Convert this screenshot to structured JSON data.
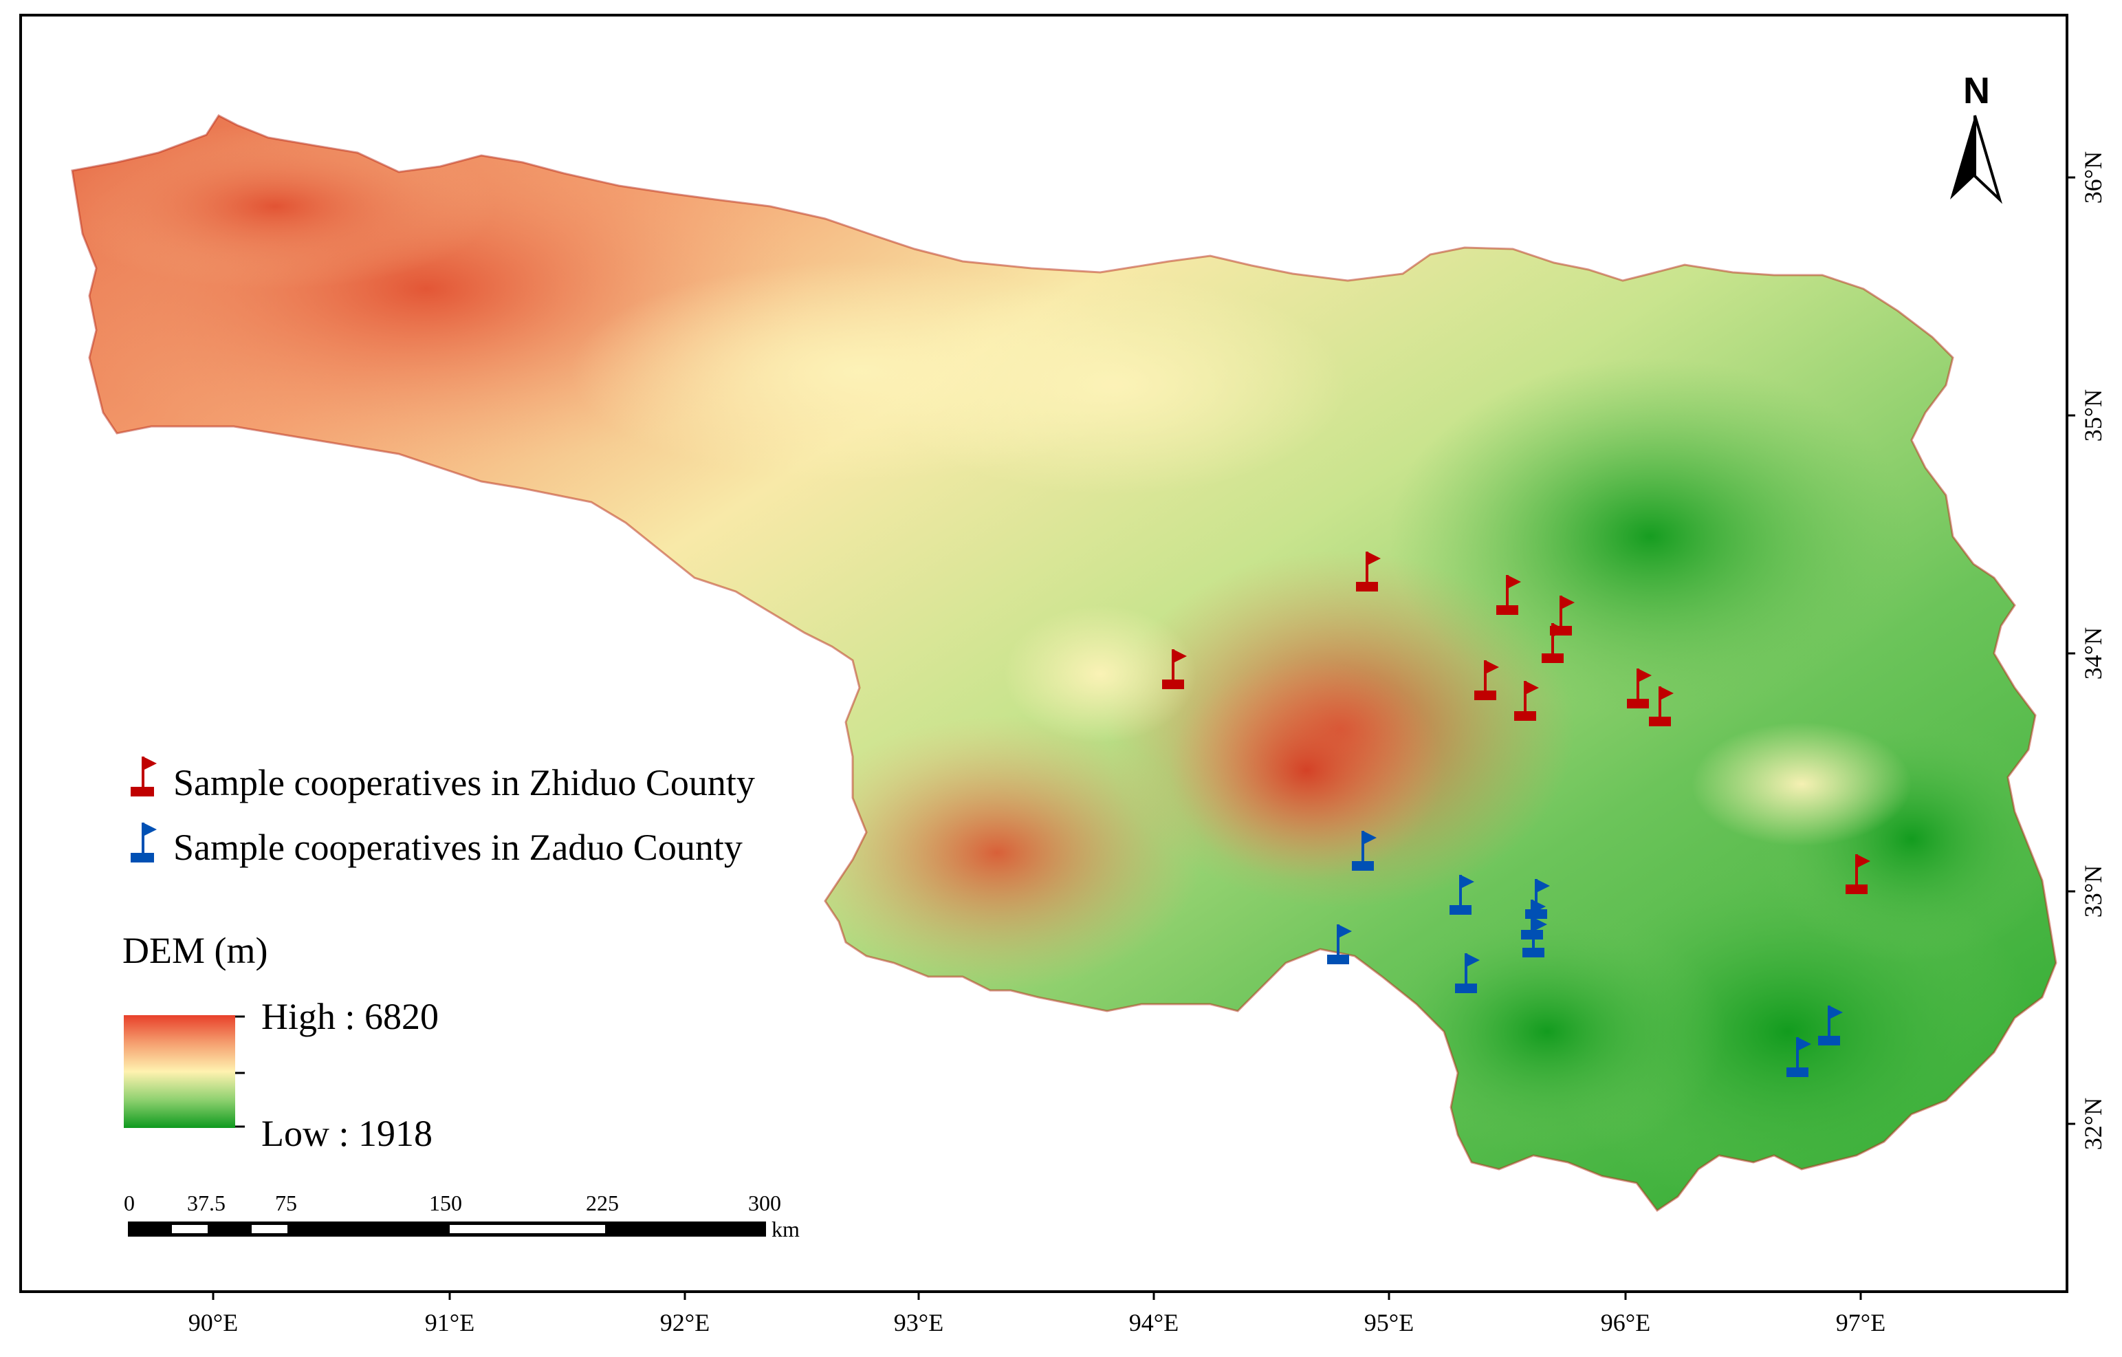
{
  "legend": {
    "zhiduo_label": "Sample cooperatives in Zhiduo County",
    "zaduo_label": "Sample cooperatives in Zaduo County",
    "dem_title": "DEM (m)",
    "dem_high": "High : 6820",
    "dem_low": "Low : 1918"
  },
  "colors": {
    "zhiduo_flag": "#c00000",
    "zaduo_flag": "#0050b4",
    "dem_high": "#e8402a",
    "dem_mid": "#fff2b0",
    "dem_low": "#0e9a1e"
  },
  "north_arrow": {
    "letter": "N"
  },
  "longitude_ticks": [
    "90°E",
    "91°E",
    "92°E",
    "93°E",
    "94°E",
    "95°E",
    "96°E",
    "97°E"
  ],
  "latitude_ticks": [
    "36°N",
    "35°N",
    "34°N",
    "33°N",
    "32°N"
  ],
  "scale_bar": {
    "ticks": [
      "0",
      "37.5",
      "75",
      "150",
      "225",
      "300"
    ],
    "unit": "km"
  },
  "icons": {
    "zhiduo": "red-flag-icon",
    "zaduo": "blue-flag-icon",
    "north": "north-arrow-icon"
  }
}
